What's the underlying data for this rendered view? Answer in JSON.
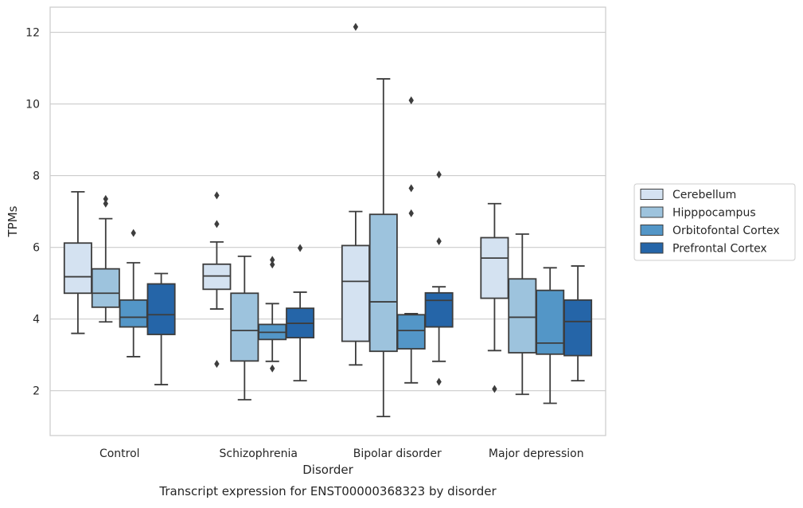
{
  "chart_data": {
    "type": "boxplot",
    "title": "",
    "xlabel": "Disorder",
    "ylabel": "TPMs",
    "caption": "Transcript expression for ENST00000368323 by disorder",
    "categories": [
      "Control",
      "Schizophrenia",
      "Bipolar disorder",
      "Major depression"
    ],
    "ylim": [
      0.75,
      12.7
    ],
    "yticks": [
      2,
      4,
      6,
      8,
      10,
      12
    ],
    "grid": "horizontal",
    "legend_position": "right",
    "series": [
      {
        "name": "Cerebellum",
        "color": "#d4e2f1",
        "boxes": [
          {
            "whislo": 3.6,
            "q1": 4.72,
            "med": 5.18,
            "q3": 6.12,
            "whishi": 7.55,
            "fliers": []
          },
          {
            "whislo": 4.28,
            "q1": 4.83,
            "med": 5.2,
            "q3": 5.53,
            "whishi": 6.15,
            "fliers": [
              2.75,
              6.65,
              7.45
            ]
          },
          {
            "whislo": 2.72,
            "q1": 3.38,
            "med": 5.05,
            "q3": 6.05,
            "whishi": 7.0,
            "fliers": [
              12.15
            ]
          },
          {
            "whislo": 3.12,
            "q1": 4.58,
            "med": 5.7,
            "q3": 6.27,
            "whishi": 7.22,
            "fliers": [
              2.05
            ]
          }
        ]
      },
      {
        "name": "Hipppocampus",
        "color": "#9dc3dd",
        "boxes": [
          {
            "whislo": 3.92,
            "q1": 4.33,
            "med": 4.72,
            "q3": 5.4,
            "whishi": 6.8,
            "fliers": [
              7.22,
              7.35
            ]
          },
          {
            "whislo": 1.75,
            "q1": 2.83,
            "med": 3.68,
            "q3": 4.72,
            "whishi": 5.75,
            "fliers": []
          },
          {
            "whislo": 1.28,
            "q1": 3.1,
            "med": 4.48,
            "q3": 6.92,
            "whishi": 10.7,
            "fliers": []
          },
          {
            "whislo": 1.9,
            "q1": 3.06,
            "med": 4.05,
            "q3": 5.12,
            "whishi": 6.37,
            "fliers": []
          }
        ]
      },
      {
        "name": "Orbitofontal Cortex",
        "color": "#5396c7",
        "boxes": [
          {
            "whislo": 2.95,
            "q1": 3.78,
            "med": 4.05,
            "q3": 4.53,
            "whishi": 5.57,
            "fliers": [
              6.4
            ]
          },
          {
            "whislo": 2.82,
            "q1": 3.43,
            "med": 3.63,
            "q3": 3.85,
            "whishi": 4.43,
            "fliers": [
              2.62,
              5.52,
              5.65
            ]
          },
          {
            "whislo": 2.22,
            "q1": 3.17,
            "med": 3.68,
            "q3": 4.12,
            "whishi": 4.15,
            "fliers": [
              6.95,
              7.65,
              10.1
            ]
          },
          {
            "whislo": 1.65,
            "q1": 3.02,
            "med": 3.33,
            "q3": 4.8,
            "whishi": 5.43,
            "fliers": []
          }
        ]
      },
      {
        "name": "Prefrontal Cortex",
        "color": "#2565a8",
        "boxes": [
          {
            "whislo": 2.17,
            "q1": 3.57,
            "med": 4.12,
            "q3": 4.98,
            "whishi": 5.27,
            "fliers": []
          },
          {
            "whislo": 2.28,
            "q1": 3.48,
            "med": 3.88,
            "q3": 4.3,
            "whishi": 4.75,
            "fliers": [
              5.98
            ]
          },
          {
            "whislo": 2.82,
            "q1": 3.78,
            "med": 4.52,
            "q3": 4.73,
            "whishi": 4.9,
            "fliers": [
              2.25,
              6.17,
              8.03
            ]
          },
          {
            "whislo": 2.28,
            "q1": 2.98,
            "med": 3.93,
            "q3": 4.53,
            "whishi": 5.48,
            "fliers": []
          }
        ]
      }
    ]
  }
}
